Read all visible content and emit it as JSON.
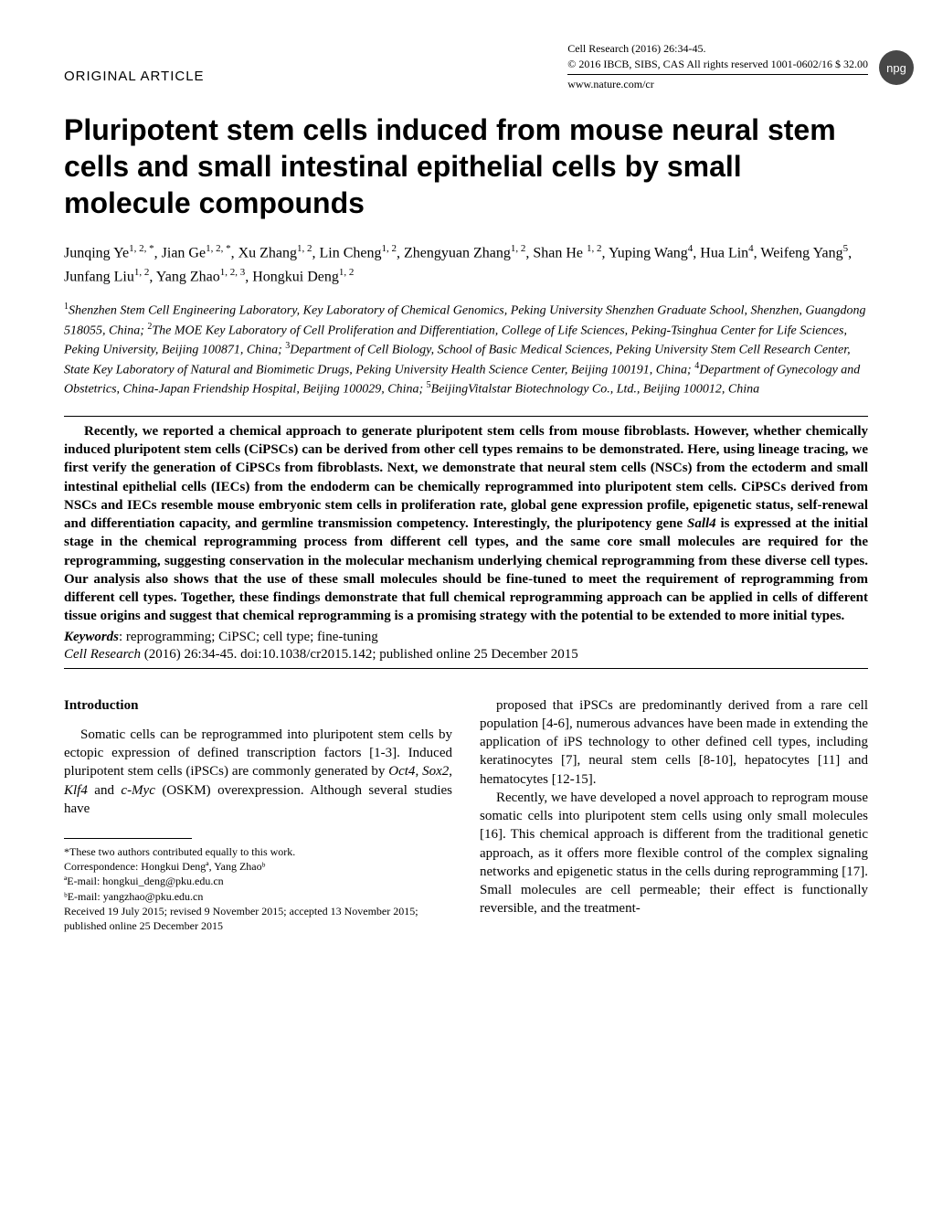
{
  "header": {
    "article_type": "ORIGINAL ARTICLE",
    "journal_citation": "Cell Research (2016) 26:34-45.",
    "copyright": "© 2016 IBCB, SIBS, CAS   All rights reserved 1001-0602/16  $ 32.00",
    "url": "www.nature.com/cr",
    "badge": "npg"
  },
  "title": "Pluripotent stem cells induced from mouse neural stem cells and small intestinal epithelial cells by small molecule compounds",
  "authors_html": "Junqing Ye<sup>1, 2, *</sup>, Jian Ge<sup>1, 2, *</sup>, Xu Zhang<sup>1, 2</sup>, Lin Cheng<sup>1, 2</sup>, Zhengyuan Zhang<sup>1, 2</sup>, Shan He <sup>1, 2</sup>, Yuping Wang<sup>4</sup>, Hua Lin<sup>4</sup>, Weifeng Yang<sup>5</sup>, Junfang Liu<sup>1, 2</sup>, Yang Zhao<sup>1, 2, 3</sup>, Hongkui Deng<sup>1, 2</sup>",
  "affiliations_html": "<sup>1</sup>Shenzhen Stem Cell Engineering Laboratory, Key Laboratory of Chemical Genomics, Peking University Shenzhen Graduate School, Shenzhen, Guangdong 518055, China; <sup>2</sup>The MOE Key Laboratory of Cell Proliferation and Differentiation, College of Life Sciences, Peking-Tsinghua Center for Life Sciences, Peking University, Beijing 100871, China; <sup>3</sup>Department of Cell Biology, School of Basic Medical Sciences, Peking University Stem Cell Research Center, State Key Laboratory of Natural and Biomimetic Drugs, Peking University Health Science Center, Beijing 100191, China; <sup>4</sup>Department of Gynecology and Obstetrics, China-Japan Friendship Hospital, Beijing 100029, China; <sup>5</sup>BeijingVitalstar Biotechnology Co., Ltd., Beijing 100012, China",
  "abstract": "Recently, we reported a chemical approach to generate pluripotent stem cells from mouse fibroblasts. However, whether chemically induced pluripotent stem cells (CiPSCs) can be derived from other cell types remains to be demonstrated. Here, using lineage tracing, we first verify the generation of CiPSCs from fibroblasts. Next, we demonstrate that neural stem cells (NSCs) from the ectoderm and small intestinal epithelial cells (IECs) from the endoderm can be chemically reprogrammed into pluripotent stem cells. CiPSCs derived from NSCs and IECs resemble mouse embryonic stem cells in proliferation rate, global gene expression profile, epigenetic status, self-renewal and differentiation capacity, and germline transmission competency. Interestingly, the pluripotency gene <i>Sall4</i> is expressed at the initial stage in the chemical reprogramming process from different cell types, and the same core small molecules are required for the reprogramming, suggesting conservation in the molecular mechanism underlying chemical reprogramming from these diverse cell types. Our analysis also shows that the use of these small molecules should be fine-tuned to meet the requirement of reprogramming from different cell types. Together, these findings demonstrate that full chemical reprogramming approach can be applied in cells of different tissue origins and suggest that chemical reprogramming is a promising strategy with the potential to be extended to more initial types.",
  "keywords": {
    "label": "Keywords",
    "text": ": reprogramming; CiPSC; cell type; fine-tuning"
  },
  "citation": {
    "journal": "Cell Research",
    "rest": " (2016) 26:34-45. doi:10.1038/cr2015.142; published online 25 December 2015"
  },
  "intro": {
    "heading": "Introduction",
    "p1": "Somatic cells can be reprogrammed into pluripotent stem cells by ectopic expression of defined transcription factors [1-3]. Induced pluripotent stem cells (iPSCs) are commonly generated by <i>Oct4</i>, <i>Sox2</i>, <i>Klf4</i> and <i>c-Myc</i> (OSKM) overexpression. Although several studies have",
    "p2": "proposed that iPSCs are predominantly derived from a rare cell population [4-6], numerous advances have been made in extending the application of iPS technology to other defined cell types, including keratinocytes [7], neural stem cells [8-10], hepatocytes [11] and hematocytes [12-15].",
    "p3": "Recently, we have developed a novel approach to reprogram mouse somatic cells into pluripotent stem cells using only small molecules [16]. This chemical approach is different from the traditional genetic approach, as it offers more flexible control of the complex signaling networks and epigenetic status in the cells during reprogramming [17]. Small molecules are cell permeable; their effect is functionally reversible, and the treatment-"
  },
  "footnotes": {
    "equal": "*These two authors contributed equally to this work.",
    "correspondence": "Correspondence: Hongkui Dengª, Yang Zhaoᵇ",
    "email_a": "ªE-mail: hongkui_deng@pku.edu.cn",
    "email_b": "ᵇE-mail: yangzhao@pku.edu.cn",
    "dates": "Received 19 July 2015; revised 9 November 2015; accepted 13 November 2015; published online 25 December 2015"
  }
}
